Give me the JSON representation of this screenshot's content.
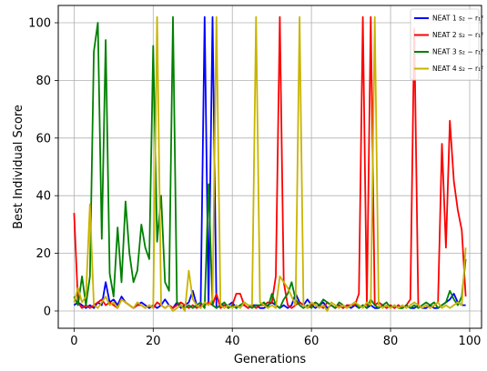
{
  "chart_data": {
    "type": "line",
    "title": "",
    "xlabel": "Generations",
    "ylabel": "Best Individual Score",
    "xlim": [
      -4,
      103
    ],
    "ylim": [
      -6,
      106
    ],
    "x_ticks": [
      0,
      20,
      40,
      60,
      80,
      100
    ],
    "y_ticks": [
      0,
      20,
      40,
      60,
      80,
      100
    ],
    "grid": true,
    "legend_position": "top-right",
    "x": [
      0,
      1,
      2,
      3,
      4,
      5,
      6,
      7,
      8,
      9,
      10,
      11,
      12,
      13,
      14,
      15,
      16,
      17,
      18,
      19,
      20,
      21,
      22,
      23,
      24,
      25,
      26,
      27,
      28,
      29,
      30,
      31,
      32,
      33,
      34,
      35,
      36,
      37,
      38,
      39,
      40,
      41,
      42,
      43,
      44,
      45,
      46,
      47,
      48,
      49,
      50,
      51,
      52,
      53,
      54,
      55,
      56,
      57,
      58,
      59,
      60,
      61,
      62,
      63,
      64,
      65,
      66,
      67,
      68,
      69,
      70,
      71,
      72,
      73,
      74,
      75,
      76,
      77,
      78,
      79,
      80,
      81,
      82,
      83,
      84,
      85,
      86,
      87,
      88,
      89,
      90,
      91,
      92,
      93,
      94,
      95,
      96,
      97,
      98,
      99
    ],
    "series": [
      {
        "name": "NEAT 1 s₂ − r₁²",
        "legend_label": "NEAT 1 s2 - r1^2",
        "color": "#0000ff",
        "values": [
          2,
          3,
          2,
          1,
          2,
          1,
          3,
          2,
          10,
          3,
          4,
          2,
          5,
          3,
          2,
          1,
          2,
          3,
          2,
          1,
          2,
          1,
          2,
          4,
          2,
          1,
          3,
          1,
          2,
          3,
          7,
          2,
          1,
          102,
          2,
          102,
          1,
          2,
          2,
          2,
          3,
          1,
          2,
          2,
          1,
          2,
          2,
          1,
          1,
          2,
          3,
          2,
          1,
          2,
          1,
          2,
          6,
          3,
          2,
          4,
          2,
          1,
          2,
          3,
          1,
          2,
          1,
          2,
          1,
          2,
          1,
          2,
          1,
          2,
          1,
          2,
          1,
          1,
          2,
          1,
          2,
          1,
          2,
          1,
          2,
          1,
          1,
          2,
          1,
          1,
          2,
          1,
          1,
          2,
          3,
          4,
          6,
          3,
          2,
          2
        ]
      },
      {
        "name": "NEAT 2 s₂ − r₁²",
        "legend_label": "NEAT 2 s2 - r1^2",
        "color": "#ff0000",
        "values": [
          34,
          3,
          1,
          2,
          1,
          2,
          3,
          4,
          2,
          3,
          2,
          1,
          4,
          3,
          2,
          1,
          2,
          2,
          1,
          2,
          1,
          3,
          2,
          1,
          2,
          1,
          2,
          3,
          2,
          1,
          2,
          1,
          2,
          2,
          3,
          2,
          6,
          1,
          2,
          1,
          2,
          6,
          6,
          2,
          1,
          2,
          1,
          2,
          2,
          3,
          3,
          12,
          102,
          10,
          2,
          1,
          2,
          3,
          2,
          1,
          2,
          3,
          2,
          1,
          3,
          2,
          1,
          2,
          1,
          2,
          2,
          2,
          6,
          102,
          2,
          102,
          2,
          3,
          2,
          1,
          2,
          1,
          2,
          1,
          2,
          4,
          98,
          2,
          1,
          2,
          1,
          2,
          3,
          58,
          22,
          66,
          45,
          35,
          28,
          5
        ]
      },
      {
        "name": "NEAT 3 s₂ − r₁²",
        "legend_label": "NEAT 3 s2 - r1^2",
        "color": "#008000",
        "values": [
          5,
          2,
          12,
          2,
          12,
          90,
          100,
          25,
          94,
          13,
          5,
          29,
          10,
          38,
          20,
          10,
          14,
          30,
          22,
          18,
          92,
          24,
          40,
          10,
          7,
          102,
          3,
          2,
          1,
          2,
          1,
          2,
          3,
          1,
          44,
          2,
          1,
          2,
          3,
          1,
          2,
          1,
          2,
          3,
          2,
          1,
          2,
          2,
          3,
          1,
          6,
          2,
          1,
          4,
          6,
          10,
          4,
          2,
          1,
          2,
          1,
          3,
          2,
          4,
          3,
          2,
          1,
          3,
          2,
          1,
          2,
          3,
          1,
          2,
          1,
          4,
          2,
          1,
          2,
          3,
          1,
          2,
          1,
          1,
          2,
          1,
          2,
          1,
          2,
          3,
          2,
          3,
          1,
          2,
          3,
          7,
          4,
          2,
          5,
          18
        ]
      },
      {
        "name": "NEAT 4 s₂ − r₁²",
        "legend_label": "NEAT 4 s2 - r1^2",
        "color": "#c8b400",
        "values": [
          3,
          8,
          3,
          5,
          37,
          2,
          1,
          3,
          5,
          2,
          3,
          1,
          4,
          3,
          2,
          1,
          3,
          2,
          1,
          2,
          1,
          102,
          2,
          1,
          2,
          0,
          1,
          2,
          0,
          14,
          4,
          2,
          1,
          3,
          2,
          4,
          102,
          2,
          1,
          2,
          1,
          2,
          1,
          3,
          2,
          2,
          102,
          3,
          2,
          1,
          2,
          1,
          12,
          10,
          8,
          5,
          2,
          102,
          2,
          1,
          3,
          2,
          1,
          2,
          0,
          3,
          2,
          1,
          2,
          1,
          2,
          3,
          2,
          1,
          3,
          2,
          102,
          2,
          1,
          2,
          1,
          2,
          1,
          2,
          1,
          2,
          3,
          2,
          1,
          2,
          1,
          2,
          3,
          1,
          2,
          1,
          2,
          3,
          2,
          22
        ]
      }
    ]
  }
}
